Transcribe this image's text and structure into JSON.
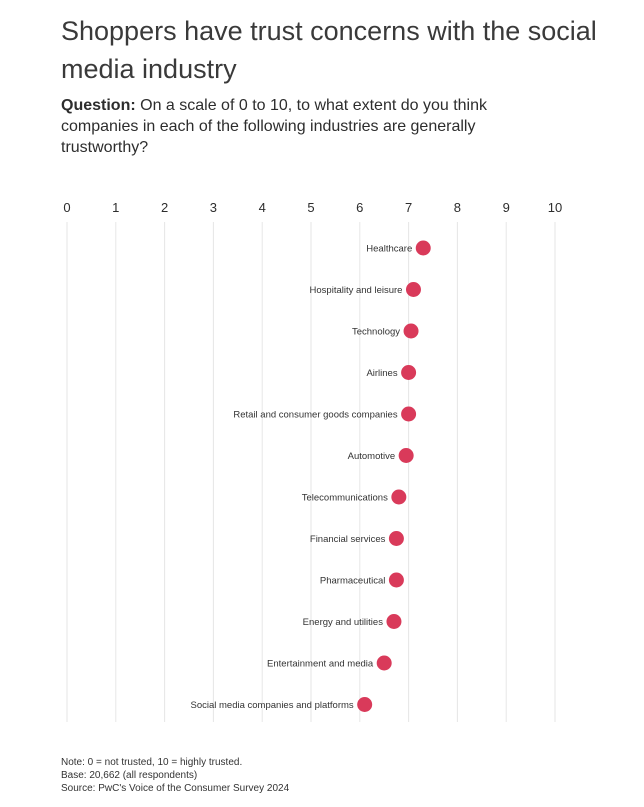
{
  "header": {
    "title": "Shoppers have trust concerns with the social media industry",
    "question_label": "Question:",
    "question_text": "On a scale of 0 to 10, to what extent do you think companies in each of the following industries are generally trustworthy?"
  },
  "notes": {
    "note": "Note: 0 = not trusted, 10 = highly trusted.",
    "base": "Base: 20,662 (all respondents)",
    "source": "Source: PwC's Voice of the Consumer Survey 2024"
  },
  "colors": {
    "dot": "#d93a5a",
    "grid": "#e6e6e6"
  },
  "chart_data": {
    "type": "scatter",
    "xlim": [
      0,
      10
    ],
    "x_ticks": [
      "0",
      "1",
      "2",
      "3",
      "4",
      "5",
      "6",
      "7",
      "8",
      "9",
      "10"
    ],
    "grid": true,
    "categories": [
      "Healthcare",
      "Hospitality and leisure",
      "Technology",
      "Airlines",
      "Retail and consumer goods companies",
      "Automotive",
      "Telecommunications",
      "Financial services",
      "Pharmaceutical",
      "Energy and utilities",
      "Entertainment and media",
      "Social media companies and platforms"
    ],
    "values": [
      7.3,
      7.1,
      7.05,
      7.0,
      7.0,
      6.95,
      6.8,
      6.75,
      6.75,
      6.7,
      6.5,
      6.1
    ]
  }
}
